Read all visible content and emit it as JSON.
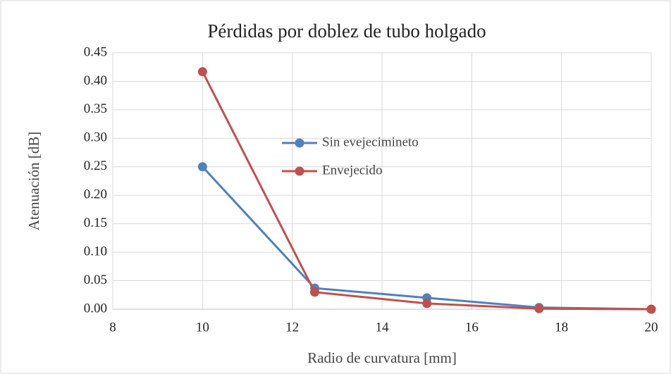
{
  "chart_data": {
    "type": "line",
    "title": "Pérdidas por doblez de tubo holgado",
    "xlabel": "Radio de curvatura [mm]",
    "ylabel": "Atenuación [dB]",
    "x": [
      10,
      12.5,
      15,
      17.5,
      20
    ],
    "series": [
      {
        "name": "Sin evejecimineto",
        "color": "#4f81bd",
        "values": [
          0.25,
          0.037,
          0.02,
          0.003,
          0
        ]
      },
      {
        "name": "Envejecido",
        "color": "#c0504d",
        "values": [
          0.417,
          0.03,
          0.01,
          0.001,
          0
        ]
      }
    ],
    "xlim": [
      8,
      20
    ],
    "xticks": [
      8,
      10,
      12,
      14,
      16,
      18,
      20
    ],
    "ylim": [
      0,
      0.45
    ],
    "yticks": [
      {
        "value": 0,
        "label": "0.00"
      },
      0.05,
      {
        "value": 0.1,
        "label": "0.10"
      },
      0.15,
      {
        "value": 0.2,
        "label": "0.20"
      },
      0.25,
      {
        "value": 0.3,
        "label": "0.30"
      },
      0.35,
      {
        "value": 0.4,
        "label": "0.40"
      },
      0.45
    ],
    "grid": true
  }
}
